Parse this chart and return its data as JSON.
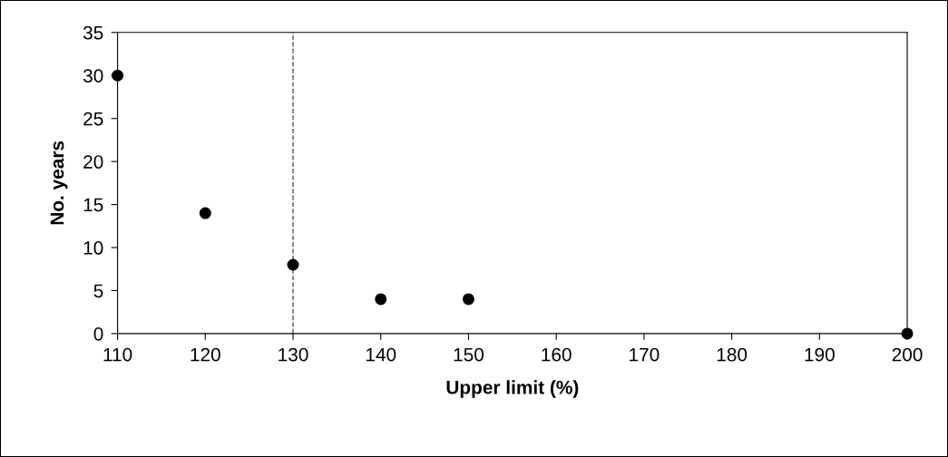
{
  "chart_data": {
    "type": "scatter",
    "xlabel": "Upper limit (%)",
    "ylabel": "No. years",
    "x": [
      110,
      120,
      130,
      140,
      150,
      200
    ],
    "series": [
      {
        "color": "#000000",
        "values": [
          30,
          14,
          8,
          4,
          4,
          0
        ]
      }
    ],
    "xlim": [
      110,
      200
    ],
    "xticks": [
      110,
      120,
      130,
      140,
      150,
      160,
      170,
      180,
      190,
      200
    ],
    "ylim": [
      0,
      35
    ],
    "yticks": [
      0,
      5,
      10,
      15,
      20,
      25,
      30,
      35
    ],
    "ref_lines": [
      {
        "axis": "x",
        "value": 130,
        "color": "#555555",
        "line_style": "dashed"
      }
    ],
    "marker": "circle",
    "grid": false,
    "legend": false
  }
}
